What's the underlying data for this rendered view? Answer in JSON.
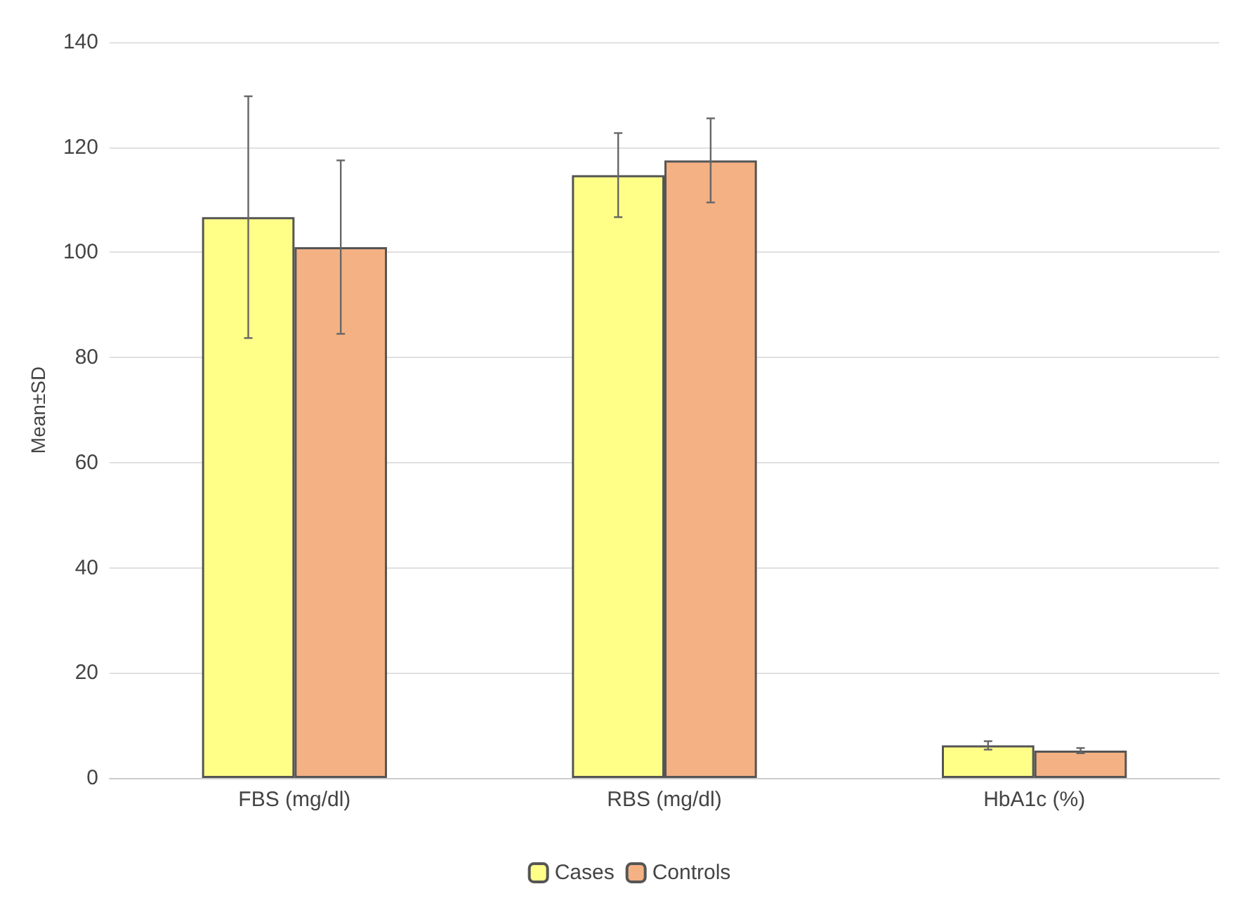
{
  "chart_data": {
    "type": "bar",
    "ylabel": "Mean±SD",
    "categories": [
      "FBS (mg/dl)",
      "RBS (mg/dl)",
      "HbA1c (%)"
    ],
    "series": [
      {
        "name": "Cases",
        "color": "#ffff88",
        "values": [
          106.7,
          114.7,
          6.2
        ],
        "errors": [
          23,
          8,
          0.8
        ]
      },
      {
        "name": "Controls",
        "color": "#f4b183",
        "values": [
          101,
          117.5,
          5.2
        ],
        "errors": [
          16.5,
          8,
          0.5
        ]
      }
    ],
    "ylim": [
      0,
      140
    ],
    "yticks": [
      0,
      20,
      40,
      60,
      80,
      100,
      120,
      140
    ],
    "grid": "y",
    "legend": "bottom"
  }
}
